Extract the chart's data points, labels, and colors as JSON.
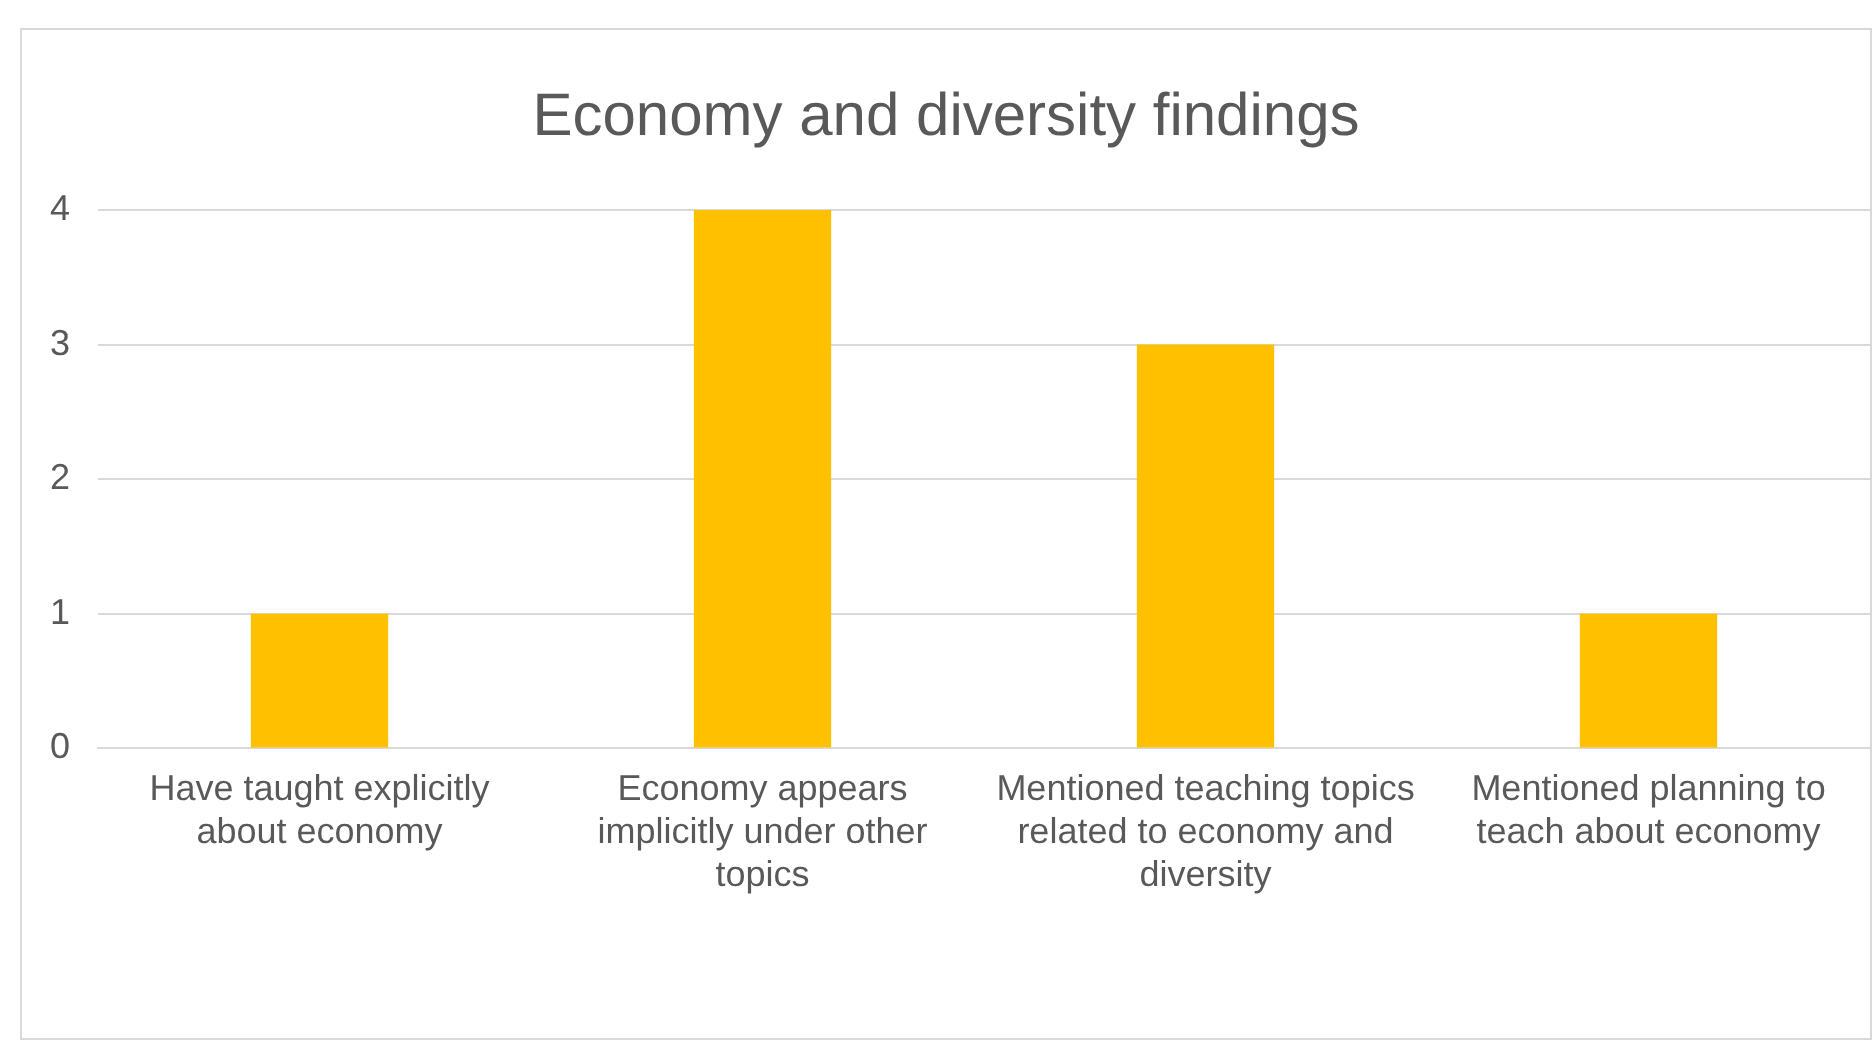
{
  "chart_data": {
    "type": "bar",
    "title": "Economy and diversity findings",
    "categories": [
      "Have taught explicitly about economy",
      "Economy appears implicitly under other topics",
      "Mentioned teaching topics related to economy and diversity",
      "Mentioned planning to teach about economy"
    ],
    "values": [
      1,
      4,
      3,
      1
    ],
    "color": "#ffc000",
    "ylim": [
      0,
      4
    ],
    "yticks": [
      0,
      1,
      2,
      3,
      4
    ],
    "grid": "y",
    "legend": false
  }
}
